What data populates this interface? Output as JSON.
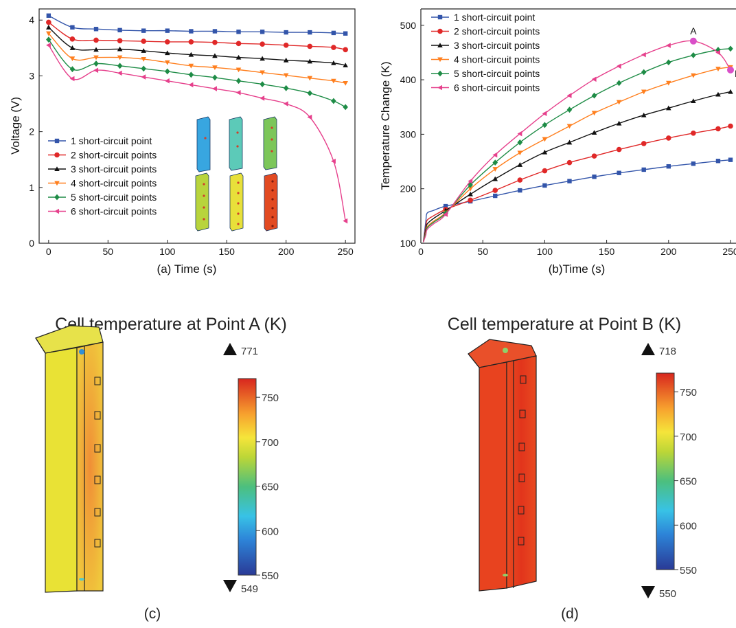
{
  "colors": {
    "series": [
      "#3355aa",
      "#e02828",
      "#111111",
      "#ff7f1e",
      "#1e8c46",
      "#e6408c"
    ],
    "cell_a": "#e9e235",
    "cell_a_inner": "#f2a23e",
    "cell_b": "#e8431f",
    "cell_b_inner": "#e2371c"
  },
  "panel_a": {
    "caption": "(a) Time (s)",
    "ylabel": "Voltage (V)",
    "xticks": [
      "0",
      "50",
      "100",
      "150",
      "200",
      "250"
    ],
    "yticks": [
      "0",
      "1",
      "2",
      "3",
      "4"
    ],
    "legend": [
      "1 short-circuit point",
      "2 short-circuit points",
      "3 short-circuit points",
      "4 short-circuit points",
      "5 short-circuit points",
      "6 short-circuit points"
    ]
  },
  "panel_b": {
    "caption": "(b)Time (s)",
    "ylabel": "Temperature Change (K)",
    "xticks": [
      "0",
      "50",
      "100",
      "150",
      "200",
      "250"
    ],
    "yticks": [
      "100",
      "200",
      "300",
      "400",
      "500"
    ],
    "point_a_label": "A",
    "point_b_label": "B",
    "legend": [
      "1 short-circuit point",
      "2 short-circuit points",
      "3 short-circuit points",
      "4 short-circuit points",
      "5 short-circuit points",
      "6 short-circuit points"
    ]
  },
  "panel_c": {
    "title": "Cell temperature at Point A (K)",
    "max_label": "771",
    "min_label": "549",
    "colorbar_ticks": [
      "750",
      "700",
      "650",
      "600",
      "550"
    ],
    "caption": "(c)"
  },
  "panel_d": {
    "title": "Cell temperature at Point B (K)",
    "max_label": "718",
    "min_label": "550",
    "colorbar_ticks": [
      "750",
      "700",
      "650",
      "600",
      "550"
    ],
    "caption": "(d)"
  },
  "chart_data": [
    {
      "type": "line",
      "xlabel": "(a) Time (s)",
      "ylabel": "Voltage (V)",
      "xlim": [
        -8,
        258
      ],
      "ylim": [
        0,
        4.2
      ],
      "legend_position": "bottom-left",
      "series": [
        {
          "name": "1 short-circuit point",
          "marker": "square",
          "x": [
            0,
            20,
            40,
            60,
            80,
            100,
            120,
            140,
            160,
            180,
            200,
            220,
            240,
            250
          ],
          "y": [
            4.08,
            3.87,
            3.84,
            3.82,
            3.81,
            3.81,
            3.8,
            3.8,
            3.79,
            3.79,
            3.78,
            3.78,
            3.77,
            3.76
          ]
        },
        {
          "name": "2 short-circuit points",
          "marker": "circle",
          "x": [
            0,
            20,
            40,
            60,
            80,
            100,
            120,
            140,
            160,
            180,
            200,
            220,
            240,
            250
          ],
          "y": [
            3.96,
            3.66,
            3.64,
            3.63,
            3.62,
            3.61,
            3.61,
            3.6,
            3.58,
            3.57,
            3.55,
            3.53,
            3.51,
            3.47
          ]
        },
        {
          "name": "3 short-circuit points",
          "marker": "triangle-up",
          "x": [
            0,
            20,
            40,
            60,
            80,
            100,
            120,
            140,
            160,
            180,
            200,
            220,
            240,
            250
          ],
          "y": [
            3.87,
            3.5,
            3.47,
            3.48,
            3.45,
            3.41,
            3.38,
            3.36,
            3.33,
            3.31,
            3.28,
            3.26,
            3.23,
            3.19
          ]
        },
        {
          "name": "4 short-circuit points",
          "marker": "triangle-down",
          "x": [
            0,
            20,
            40,
            60,
            80,
            100,
            120,
            140,
            160,
            180,
            200,
            220,
            240,
            250
          ],
          "y": [
            3.76,
            3.31,
            3.33,
            3.33,
            3.3,
            3.24,
            3.18,
            3.15,
            3.11,
            3.06,
            3.01,
            2.96,
            2.91,
            2.87
          ]
        },
        {
          "name": "5 short-circuit points",
          "marker": "diamond",
          "x": [
            0,
            20,
            40,
            60,
            80,
            100,
            120,
            140,
            160,
            180,
            200,
            220,
            240,
            250
          ],
          "y": [
            3.65,
            3.12,
            3.22,
            3.18,
            3.13,
            3.08,
            3.02,
            2.97,
            2.91,
            2.85,
            2.78,
            2.69,
            2.55,
            2.44
          ]
        },
        {
          "name": "6 short-circuit points",
          "marker": "triangle-left",
          "x": [
            0,
            20,
            40,
            60,
            80,
            100,
            120,
            140,
            160,
            180,
            200,
            220,
            240,
            250
          ],
          "y": [
            3.55,
            2.95,
            3.1,
            3.05,
            2.98,
            2.91,
            2.84,
            2.77,
            2.7,
            2.6,
            2.5,
            2.26,
            1.47,
            0.4
          ]
        }
      ]
    },
    {
      "type": "line",
      "xlabel": "(b)Time (s)",
      "ylabel": "Temperature Change (K)",
      "xlim": [
        0,
        250
      ],
      "ylim": [
        100,
        530
      ],
      "legend_position": "top-left",
      "annotations": [
        {
          "label": "A",
          "x": 220,
          "y": 471
        },
        {
          "label": "B",
          "x": 250,
          "y": 418
        }
      ],
      "series": [
        {
          "name": "1 short-circuit point",
          "marker": "square",
          "x": [
            2,
            4,
            5,
            10,
            20,
            40,
            60,
            80,
            100,
            120,
            140,
            160,
            180,
            200,
            220,
            240,
            250
          ],
          "y": [
            102,
            140,
            155,
            160,
            168,
            177,
            187,
            197,
            206,
            214,
            222,
            229,
            235,
            241,
            246,
            251,
            253
          ]
        },
        {
          "name": "2 short-circuit points",
          "marker": "circle",
          "x": [
            2,
            4,
            5,
            10,
            20,
            40,
            60,
            80,
            100,
            120,
            140,
            160,
            180,
            200,
            220,
            240,
            250
          ],
          "y": [
            102,
            130,
            142,
            150,
            162,
            179,
            197,
            216,
            233,
            248,
            260,
            272,
            283,
            293,
            302,
            310,
            315
          ]
        },
        {
          "name": "3 short-circuit points",
          "marker": "triangle-up",
          "x": [
            2,
            4,
            5,
            10,
            20,
            40,
            60,
            80,
            100,
            120,
            140,
            160,
            180,
            200,
            220,
            240,
            250
          ],
          "y": [
            102,
            125,
            135,
            145,
            160,
            190,
            218,
            244,
            267,
            285,
            303,
            320,
            335,
            348,
            361,
            373,
            378
          ]
        },
        {
          "name": "4 short-circuit points",
          "marker": "triangle-down",
          "x": [
            2,
            4,
            5,
            10,
            20,
            40,
            60,
            80,
            100,
            120,
            140,
            160,
            180,
            200,
            220,
            240,
            250
          ],
          "y": [
            102,
            120,
            130,
            140,
            156,
            200,
            236,
            266,
            291,
            315,
            339,
            359,
            378,
            394,
            408,
            420,
            423
          ]
        },
        {
          "name": "5 short-circuit points",
          "marker": "diamond",
          "x": [
            2,
            4,
            5,
            10,
            20,
            40,
            60,
            80,
            100,
            120,
            140,
            160,
            180,
            200,
            220,
            240,
            250
          ],
          "y": [
            102,
            118,
            128,
            138,
            155,
            207,
            248,
            285,
            317,
            345,
            371,
            394,
            414,
            432,
            445,
            455,
            457
          ]
        },
        {
          "name": "6 short-circuit points",
          "marker": "triangle-left",
          "x": [
            2,
            4,
            5,
            10,
            20,
            40,
            60,
            80,
            100,
            120,
            140,
            160,
            180,
            200,
            220,
            240,
            250
          ],
          "y": [
            102,
            115,
            125,
            135,
            153,
            214,
            262,
            301,
            338,
            371,
            401,
            425,
            446,
            463,
            471,
            450,
            418
          ]
        }
      ]
    },
    {
      "type": "heatmap",
      "title": "Cell temperature at Point A (K)",
      "colorbar_range": [
        550,
        771
      ],
      "max": 771,
      "min": 549,
      "colorbar_ticks": [
        750,
        700,
        650,
        600,
        550
      ]
    },
    {
      "type": "heatmap",
      "title": "Cell temperature at Point B (K)",
      "colorbar_range": [
        550,
        771
      ],
      "max": 718,
      "min": 550,
      "colorbar_ticks": [
        750,
        700,
        650,
        600,
        550
      ]
    }
  ]
}
